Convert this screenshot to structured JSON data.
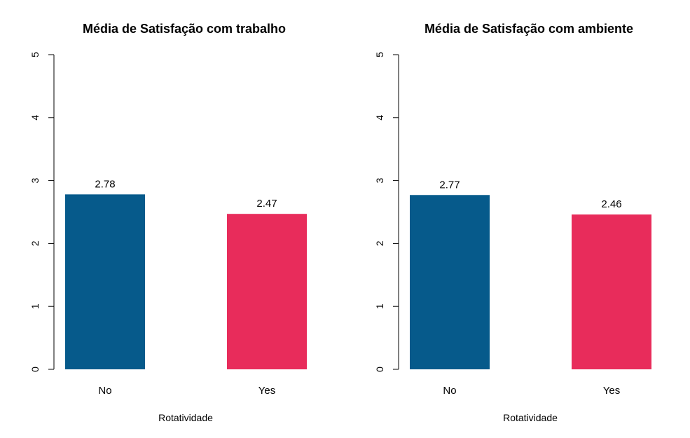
{
  "chart_data": [
    {
      "type": "bar",
      "title": "Média de Satisfação com trabalho",
      "xlabel": "Rotatividade",
      "ylabel": "",
      "categories": [
        "No",
        "Yes"
      ],
      "values": [
        2.78,
        2.47
      ],
      "value_labels": [
        "2.78",
        "2.47"
      ],
      "colors": [
        "#065A8B",
        "#E82C5B"
      ],
      "ylim": [
        0,
        5
      ],
      "yticks": [
        "0",
        "1",
        "2",
        "3",
        "4",
        "5"
      ],
      "grid": false,
      "legend": false
    },
    {
      "type": "bar",
      "title": "Média de Satisfação com ambiente",
      "xlabel": "Rotatividade",
      "ylabel": "",
      "categories": [
        "No",
        "Yes"
      ],
      "values": [
        2.77,
        2.46
      ],
      "value_labels": [
        "2.77",
        "2.46"
      ],
      "colors": [
        "#065A8B",
        "#E82C5B"
      ],
      "ylim": [
        0,
        5
      ],
      "yticks": [
        "0",
        "1",
        "2",
        "3",
        "4",
        "5"
      ],
      "grid": false,
      "legend": false
    }
  ]
}
